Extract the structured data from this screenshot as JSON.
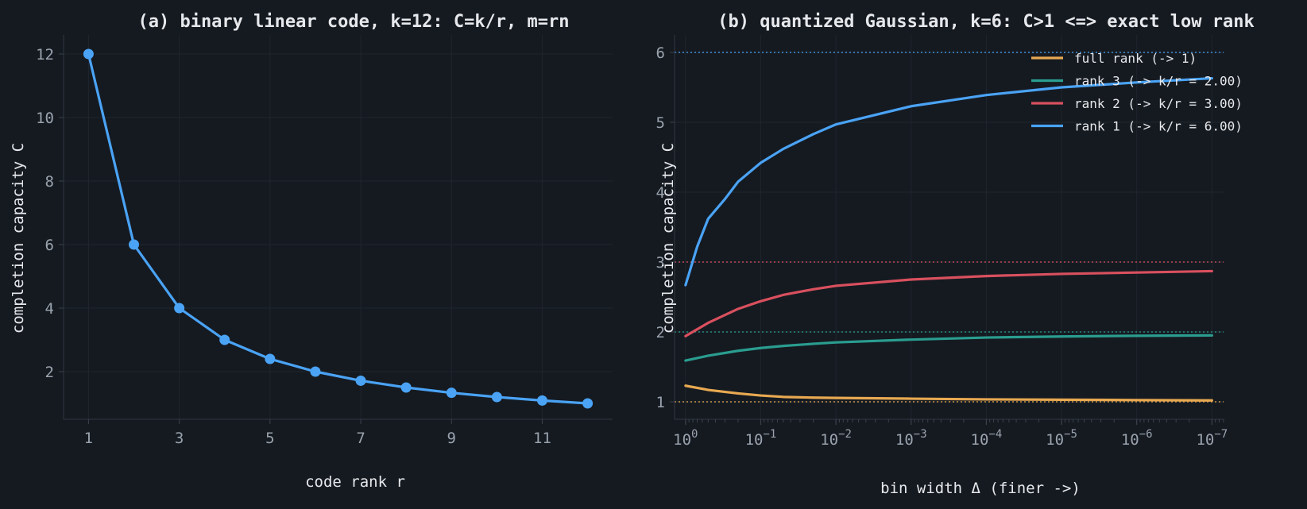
{
  "chart_data": [
    {
      "type": "line",
      "title": "(a) binary linear code, k=12:  C=k/r,  m=rn",
      "xlabel": "code rank  r",
      "ylabel": "completion capacity  C",
      "xlim": [
        0.45,
        12.55
      ],
      "ylim": [
        0.5,
        12.6
      ],
      "xticks": [
        1,
        3,
        5,
        7,
        9,
        11
      ],
      "yticks": [
        2,
        4,
        6,
        8,
        10,
        12
      ],
      "grid": true,
      "markers": true,
      "color": "#4aa3f5",
      "x": [
        1,
        2,
        3,
        4,
        5,
        6,
        7,
        8,
        9,
        10,
        11,
        12
      ],
      "y": [
        12,
        6,
        4,
        3,
        2.4,
        2,
        1.714,
        1.5,
        1.333,
        1.2,
        1.091,
        1
      ]
    },
    {
      "type": "line",
      "title": "(b) quantized Gaussian, k=6:  C>1 <=> exact low rank",
      "xlabel": "bin width  Δ  (finer ->)",
      "ylabel": "completion capacity  C",
      "xscale": "log",
      "xaxis_inverted": true,
      "xlim": [
        1.4,
        7e-08
      ],
      "ylim": [
        0.75,
        6.25
      ],
      "xticks": [
        {
          "label": "10",
          "exp": "0",
          "value": 1
        },
        {
          "label": "10",
          "exp": "−1",
          "value": 0.1
        },
        {
          "label": "10",
          "exp": "−2",
          "value": 0.01
        },
        {
          "label": "10",
          "exp": "−3",
          "value": 0.001
        },
        {
          "label": "10",
          "exp": "−4",
          "value": 0.0001
        },
        {
          "label": "10",
          "exp": "−5",
          "value": 1e-05
        },
        {
          "label": "10",
          "exp": "−6",
          "value": 1e-06
        },
        {
          "label": "10",
          "exp": "−7",
          "value": 1e-07
        }
      ],
      "yticks": [
        1,
        2,
        3,
        4,
        5,
        6
      ],
      "grid": true,
      "legend_position": "top-right",
      "reference_lines": [
        {
          "y": 6,
          "color": "#4aa3f5"
        },
        {
          "y": 3,
          "color": "#d9505e"
        },
        {
          "y": 2,
          "color": "#2a9d8f"
        },
        {
          "y": 1,
          "color": "#e8a951"
        }
      ],
      "series": [
        {
          "name": "full rank (-> 1)",
          "color": "#e8a951",
          "x": [
            1,
            0.5,
            0.2,
            0.1,
            0.05,
            0.02,
            0.01,
            0.001,
            0.0001,
            1e-05,
            1e-06,
            1e-07
          ],
          "y": [
            1.23,
            1.17,
            1.12,
            1.09,
            1.07,
            1.06,
            1.055,
            1.045,
            1.035,
            1.03,
            1.025,
            1.02
          ]
        },
        {
          "name": "rank 3 (-> k/r = 2.00)",
          "color": "#2a9d8f",
          "x": [
            1,
            0.5,
            0.2,
            0.1,
            0.05,
            0.02,
            0.01,
            0.001,
            0.0001,
            1e-05,
            1e-06,
            1e-07
          ],
          "y": [
            1.59,
            1.66,
            1.73,
            1.77,
            1.8,
            1.83,
            1.85,
            1.89,
            1.92,
            1.935,
            1.945,
            1.95
          ]
        },
        {
          "name": "rank 2 (-> k/r = 3.00)",
          "color": "#d9505e",
          "x": [
            1,
            0.5,
            0.2,
            0.1,
            0.05,
            0.02,
            0.01,
            0.001,
            0.0001,
            1e-05,
            1e-06,
            1e-07
          ],
          "y": [
            1.94,
            2.13,
            2.33,
            2.44,
            2.53,
            2.61,
            2.66,
            2.75,
            2.8,
            2.83,
            2.85,
            2.87
          ]
        },
        {
          "name": "rank 1 (-> k/r = 6.00)",
          "color": "#4aa3f5",
          "x": [
            1,
            0.7,
            0.5,
            0.3,
            0.2,
            0.1,
            0.05,
            0.02,
            0.01,
            0.001,
            0.0001,
            1e-05,
            1e-06,
            1e-07
          ],
          "y": [
            2.67,
            3.22,
            3.62,
            3.9,
            4.15,
            4.42,
            4.62,
            4.83,
            4.97,
            5.23,
            5.39,
            5.5,
            5.57,
            5.63
          ]
        }
      ]
    }
  ]
}
